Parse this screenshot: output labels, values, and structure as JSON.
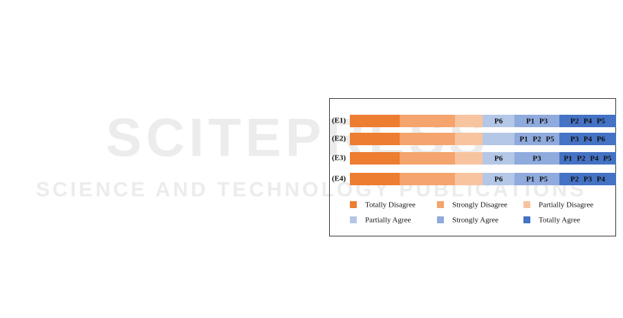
{
  "watermark": {
    "title": "SCITEPRESS",
    "subtitle": "SCIENCE AND TECHNOLOGY PUBLICATIONS"
  },
  "legend": [
    {
      "label": "Totally Disagree",
      "color": "#ed7d31"
    },
    {
      "label": "Strongly Disagree",
      "color": "#f4a46c"
    },
    {
      "label": "Partially Disagree",
      "color": "#f8c4a0"
    },
    {
      "label": "Partially Agree",
      "color": "#b4c7e7"
    },
    {
      "label": "Strongly Agree",
      "color": "#8faadc"
    },
    {
      "label": "Totally Agree",
      "color": "#4472c4"
    }
  ],
  "rows": [
    {
      "label": "(E1)",
      "cells": [
        null,
        null,
        null,
        "P6",
        "P1  P3",
        "P2  P4  P5"
      ]
    },
    {
      "label": "(E2)",
      "cells": [
        null,
        null,
        null,
        null,
        "P1  P2  P5",
        "P3  P4  P6"
      ]
    },
    {
      "label": "(E3)",
      "cells": [
        null,
        null,
        null,
        "P6",
        "P3",
        "P1 P2 P4 P5"
      ]
    },
    {
      "label": "(E4)",
      "cells": [
        null,
        null,
        null,
        "P6",
        "P1  P5",
        "P2  P3  P4"
      ]
    }
  ]
}
